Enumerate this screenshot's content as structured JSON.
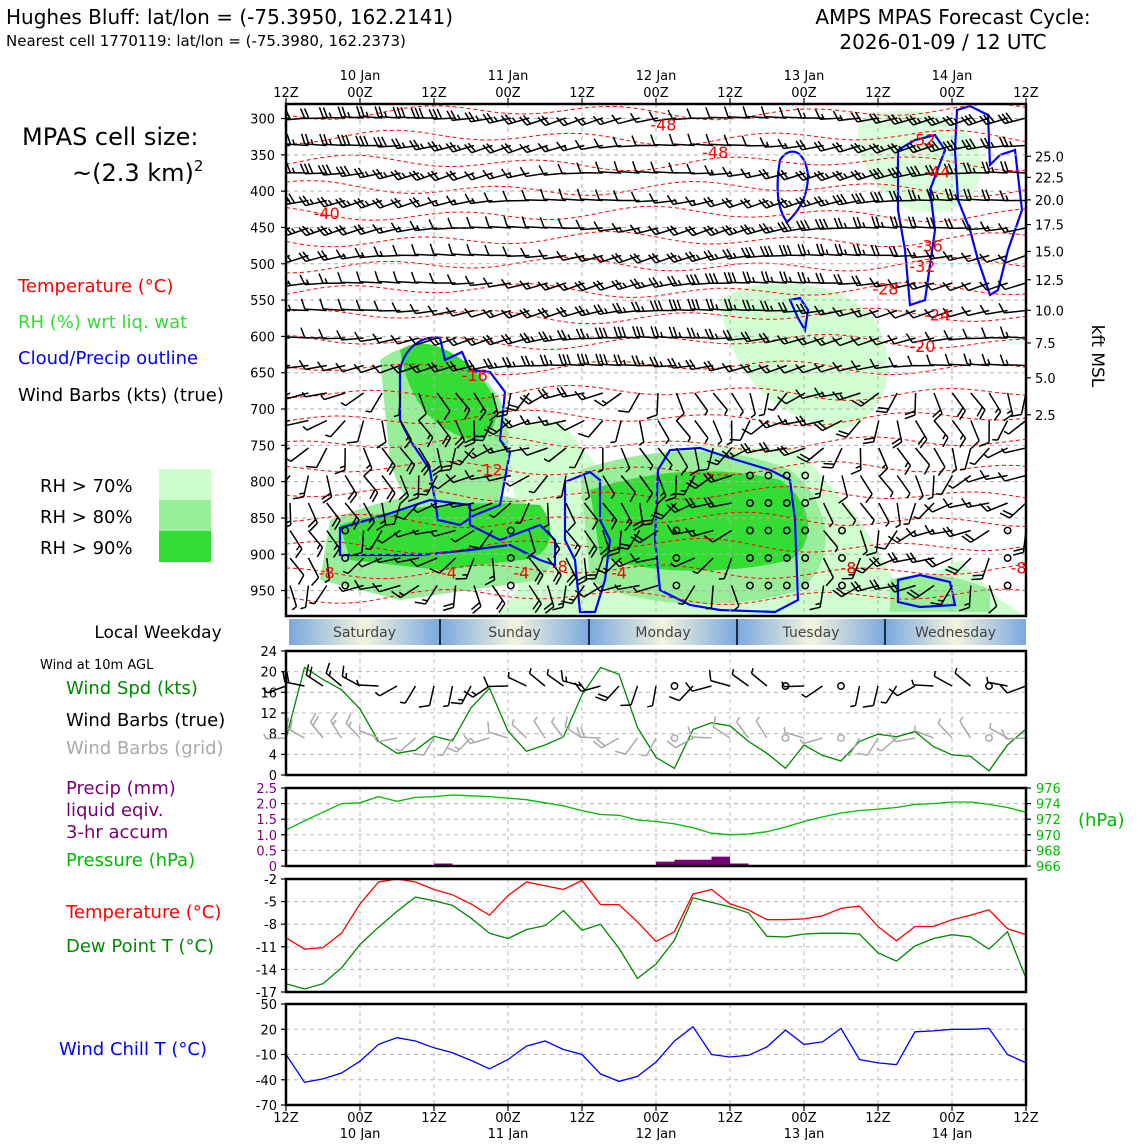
{
  "header": {
    "station_title": "Hughes Bluff: lat/lon = (-75.3950, 162.2141)",
    "nearest_cell": "Nearest cell 1770119: lat/lon = (-75.3980, 162.2373)",
    "forecast_title": "AMPS MPAS Forecast Cycle:",
    "forecast_cycle": "2026-01-09 / 12 UTC"
  },
  "left_legend": {
    "cell_size_label": "MPAS cell size:",
    "cell_size_value": "~(2.3 km)",
    "cell_size_exp": "2",
    "temperature": "Temperature (°C)",
    "rh": "RH (%) wrt liq. wat",
    "cloud": "Cloud/Precip outline",
    "wind_barbs": "Wind Barbs (kts) (true)",
    "rh_levels": [
      "RH > 70%",
      "RH > 80%",
      "RH > 90%"
    ]
  },
  "colors": {
    "temperature": "#ff0000",
    "rh_label": "#33dd33",
    "cloud": "#0000ff",
    "rh70": "#ccffcc",
    "rh80": "#99ee99",
    "rh90": "#33dd33",
    "wind_speed": "#008800",
    "grid_barbs": "#aaaaaa",
    "precip": "#770077",
    "pressure": "#00bb00",
    "dewpoint": "#008800",
    "windchill": "#0000ff"
  },
  "time_axis": {
    "ticks": [
      "12Z",
      "00Z",
      "12Z",
      "00Z",
      "12Z",
      "00Z",
      "12Z",
      "00Z",
      "12Z",
      "00Z",
      "12Z"
    ],
    "dates": [
      {
        "label": "10 Jan",
        "tick_index": 1
      },
      {
        "label": "11 Jan",
        "tick_index": 3
      },
      {
        "label": "12 Jan",
        "tick_index": 5
      },
      {
        "label": "13 Jan",
        "tick_index": 7
      },
      {
        "label": "14 Jan",
        "tick_index": 9
      }
    ]
  },
  "weekday_strip": {
    "label": "Local Weekday",
    "days": [
      "Saturday",
      "Sunday",
      "Monday",
      "Tuesday",
      "Wednesday"
    ]
  },
  "profile_panel": {
    "pressure_ticks": [
      300,
      350,
      400,
      450,
      500,
      550,
      600,
      650,
      700,
      750,
      800,
      850,
      900,
      950
    ],
    "right_axis_label": "kft MSL",
    "height_ticks": [
      {
        "label": "25.0",
        "p": 352
      },
      {
        "label": "22.5",
        "p": 381
      },
      {
        "label": "20.0",
        "p": 412
      },
      {
        "label": "17.5",
        "p": 446
      },
      {
        "label": "15.0",
        "p": 483
      },
      {
        "label": "12.5",
        "p": 522
      },
      {
        "label": "10.0",
        "p": 564
      },
      {
        "label": "7.5",
        "p": 609
      },
      {
        "label": "5.0",
        "p": 657
      },
      {
        "label": "2.5",
        "p": 708
      }
    ],
    "temperature_labels": [
      {
        "text": "-48",
        "t": 5.1,
        "p": 308
      },
      {
        "text": "-52",
        "t": 8.6,
        "p": 329
      },
      {
        "text": "-48",
        "t": 5.8,
        "p": 346
      },
      {
        "text": "-44",
        "t": 8.8,
        "p": 373
      },
      {
        "text": "-40",
        "t": 0.55,
        "p": 430
      },
      {
        "text": "-36",
        "t": 8.7,
        "p": 475
      },
      {
        "text": "-32",
        "t": 8.6,
        "p": 503
      },
      {
        "text": "-28",
        "t": 8.1,
        "p": 534
      },
      {
        "text": "-24",
        "t": 8.8,
        "p": 570
      },
      {
        "text": "-20",
        "t": 8.6,
        "p": 613
      },
      {
        "text": "-16",
        "t": 2.55,
        "p": 653
      },
      {
        "text": "-12",
        "t": 2.75,
        "p": 783
      },
      {
        "text": "-8",
        "t": 0.55,
        "p": 925
      },
      {
        "text": "-4",
        "t": 2.2,
        "p": 925
      },
      {
        "text": "-4",
        "t": 3.18,
        "p": 925
      },
      {
        "text": "-4",
        "t": 4.5,
        "p": 925
      },
      {
        "text": "-8",
        "t": 3.7,
        "p": 916
      },
      {
        "text": "-8",
        "t": 7.6,
        "p": 918
      },
      {
        "text": "-8",
        "t": 9.9,
        "p": 918
      }
    ]
  },
  "surface_wind": {
    "title": "Wind at 10m AGL",
    "speed_label": "Wind Spd (kts)",
    "barb_label": "Wind Barbs (true)",
    "grid_barb_label": "Wind Barbs (grid)",
    "y_ticks": [
      0,
      4,
      8,
      12,
      16,
      20,
      24
    ]
  },
  "precip_panel": {
    "precip_label": "Precip (mm)",
    "precip_label2": "liquid eqiv.",
    "precip_label3": "3-hr accum",
    "pressure_label": "Pressure (hPa)",
    "left_ticks": [
      "0",
      "0.5",
      "1.0",
      "1.5",
      "2.0",
      "2.5"
    ],
    "right_ticks": [
      "966",
      "968",
      "970",
      "972",
      "974",
      "976"
    ],
    "right_unit": "(hPa)"
  },
  "temp_panel": {
    "temp_label": "Temperature (°C)",
    "dew_label": "Dew Point T (°C)",
    "y_ticks": [
      -17,
      -14,
      -11,
      -8,
      -5,
      -2
    ]
  },
  "chill_panel": {
    "label": "Wind Chill T (°C)",
    "y_ticks": [
      -70,
      -40,
      -10,
      20,
      50
    ]
  },
  "chart_data": [
    {
      "type": "line",
      "name": "surface wind speed",
      "x_unit": "hours since 2026-01-09 12 UTC",
      "x": [
        0,
        3,
        6,
        9,
        12,
        15,
        18,
        21,
        24,
        27,
        30,
        33,
        36,
        39,
        42,
        45,
        48,
        51,
        54,
        57,
        60,
        63,
        66,
        69,
        72,
        75,
        78,
        81,
        84,
        87,
        90,
        93,
        96,
        99,
        102,
        105,
        108,
        111,
        114,
        117,
        120
      ],
      "series": [
        {
          "name": "Wind Spd (kts)",
          "values": [
            7,
            20.8,
            18.5,
            16.5,
            12.8,
            6.5,
            4.2,
            4.8,
            7.5,
            6.6,
            13,
            16.8,
            8.5,
            4.6,
            5.8,
            7.4,
            15.5,
            20.8,
            19.5,
            9.2,
            3.4,
            1.3,
            8.8,
            10.1,
            9.5,
            6.5,
            4.2,
            1.3,
            5.8,
            3.8,
            2.7,
            6.5,
            7.9,
            7.4,
            8.4,
            5.5,
            3.9,
            3.6,
            0.8,
            5.8,
            8.9
          ]
        }
      ],
      "ylabel": "Wind Spd (kts)",
      "ylim": [
        0,
        24
      ]
    },
    {
      "type": "line",
      "name": "pressure",
      "x": [
        0,
        3,
        6,
        9,
        12,
        15,
        18,
        21,
        24,
        27,
        30,
        33,
        36,
        39,
        42,
        45,
        48,
        51,
        54,
        57,
        60,
        63,
        66,
        69,
        72,
        75,
        78,
        81,
        84,
        87,
        90,
        93,
        96,
        99,
        102,
        105,
        108,
        111,
        114,
        117,
        120
      ],
      "series": [
        {
          "name": "Pressure (hPa)",
          "values": [
            970.6,
            971.8,
            972.9,
            974.0,
            974.1,
            974.9,
            974.3,
            974.8,
            974.9,
            975.1,
            975.0,
            974.9,
            974.7,
            974.5,
            974.1,
            973.7,
            973.1,
            972.6,
            972.5,
            971.9,
            971.7,
            971.4,
            970.9,
            970.2,
            970.0,
            970.1,
            970.4,
            971.0,
            971.7,
            972.3,
            972.8,
            973.1,
            973.3,
            973.5,
            973.9,
            974.0,
            974.2,
            974.2,
            973.9,
            973.5,
            972.9
          ]
        }
      ],
      "ylim": [
        966,
        976
      ],
      "ylabel": "Pressure (hPa)"
    },
    {
      "type": "bar",
      "name": "precip",
      "x": [
        25.5,
        61.5,
        64.5,
        67.5,
        70.5,
        73.5,
        79.5
      ],
      "values": [
        0.08,
        0.14,
        0.2,
        0.2,
        0.3,
        0.08,
        0.03
      ],
      "ylabel": "Precip (mm)",
      "ylim": [
        0,
        2.5
      ]
    },
    {
      "type": "line",
      "name": "temperature",
      "x": [
        0,
        3,
        6,
        9,
        12,
        15,
        18,
        21,
        24,
        27,
        30,
        33,
        36,
        39,
        42,
        45,
        48,
        51,
        54,
        57,
        60,
        63,
        66,
        69,
        72,
        75,
        78,
        81,
        84,
        87,
        90,
        93,
        96,
        99,
        102,
        105,
        108,
        111,
        114,
        117,
        120
      ],
      "series": [
        {
          "name": "Temperature (°C)",
          "values": [
            -9.8,
            -11.3,
            -11.1,
            -9.2,
            -5.3,
            -2.4,
            -2.0,
            -2.4,
            -3.4,
            -4.1,
            -5.3,
            -6.8,
            -4.2,
            -2.4,
            -2.9,
            -3.4,
            -2.2,
            -5.4,
            -5.4,
            -7.7,
            -10.3,
            -9.0,
            -4.0,
            -3.4,
            -5.3,
            -6.1,
            -7.4,
            -7.4,
            -7.3,
            -6.9,
            -5.9,
            -5.6,
            -8.3,
            -10.2,
            -8.3,
            -8.3,
            -7.4,
            -6.8,
            -6.1,
            -8.6,
            -9.4
          ]
        },
        {
          "name": "Dew Point T (°C)",
          "values": [
            -15.9,
            -16.6,
            -15.9,
            -13.8,
            -10.7,
            -8.4,
            -6.3,
            -4.4,
            -4.9,
            -5.5,
            -7.2,
            -9.2,
            -9.9,
            -8.7,
            -8.2,
            -6.2,
            -8.8,
            -8.0,
            -11.2,
            -15.2,
            -13.3,
            -10.1,
            -4.5,
            -5.1,
            -5.7,
            -6.5,
            -9.6,
            -9.7,
            -9.3,
            -9.2,
            -9.2,
            -9.3,
            -11.8,
            -12.9,
            -10.9,
            -9.9,
            -9.4,
            -9.7,
            -11.3,
            -9.0,
            -15.2
          ]
        }
      ],
      "ylim": [
        -17,
        -2
      ],
      "ylabel": "Temperature (°C)"
    },
    {
      "type": "line",
      "name": "wind chill",
      "x": [
        0,
        3,
        6,
        9,
        12,
        15,
        18,
        21,
        24,
        27,
        30,
        33,
        36,
        39,
        42,
        45,
        48,
        51,
        54,
        57,
        60,
        63,
        66,
        69,
        72,
        75,
        78,
        81,
        84,
        87,
        90,
        93,
        96,
        99,
        102,
        105,
        108,
        111,
        114,
        117,
        120
      ],
      "series": [
        {
          "name": "Wind Chill T (°C)",
          "values": [
            -10,
            -43,
            -39,
            -32,
            -18,
            2,
            10,
            6,
            -2,
            -8,
            -17,
            -27,
            -16,
            0,
            6,
            -4,
            -10,
            -33,
            -42,
            -36,
            -19,
            6,
            23,
            -10,
            -13,
            -11,
            -1,
            19,
            2,
            5,
            21,
            -16,
            -20,
            -22,
            17,
            18,
            20,
            20,
            21,
            -10,
            -20
          ]
        }
      ],
      "ylim": [
        -70,
        50
      ],
      "ylabel": "Wind Chill T (°C)"
    }
  ]
}
